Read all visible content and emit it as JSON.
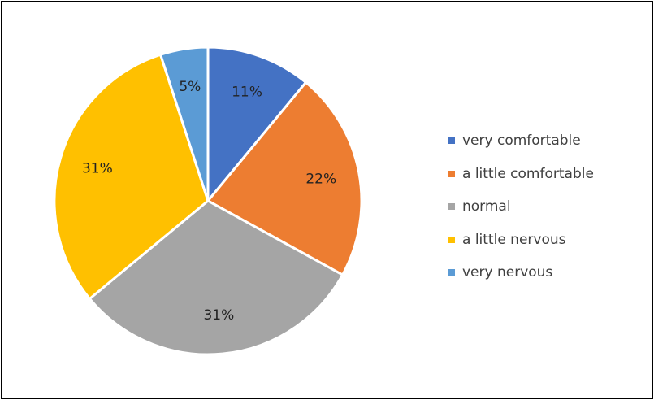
{
  "chart_data": {
    "type": "pie",
    "title": "",
    "legend_position": "right",
    "series": [
      {
        "name": "very comfortable",
        "value": 11,
        "label": "11%",
        "color": "#4472C4"
      },
      {
        "name": "a little comfortable",
        "value": 22,
        "label": "22%",
        "color": "#ED7D31"
      },
      {
        "name": "normal",
        "value": 31,
        "label": "31%",
        "color": "#A5A5A5"
      },
      {
        "name": "a little nervous",
        "value": 31,
        "label": "31%",
        "color": "#FFC000"
      },
      {
        "name": "very nervous",
        "value": 5,
        "label": "5%",
        "color": "#5B9BD5"
      }
    ]
  }
}
